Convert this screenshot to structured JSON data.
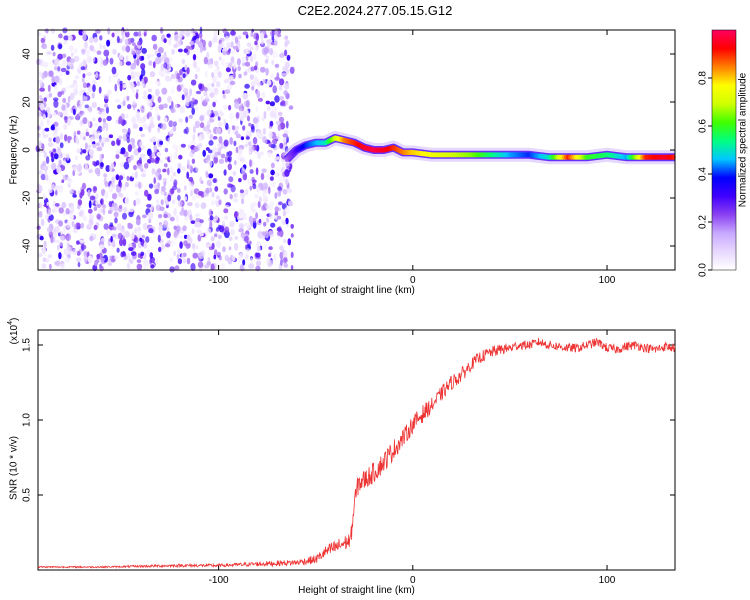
{
  "figure_title": "C2E2.2024.277.05.15.G12",
  "chart_data": [
    {
      "type": "heatmap",
      "title": "C2E2.2024.277.05.15.G12",
      "xlabel": "Height of straight line (km)",
      "ylabel": "Frequency (Hz)",
      "xlim": [
        -193,
        135
      ],
      "ylim": [
        -50,
        50
      ],
      "x_ticks": [
        -100,
        0,
        100
      ],
      "x_tick_labels": [
        "-100",
        "0",
        "100"
      ],
      "y_ticks": [
        -40,
        -20,
        0,
        20,
        40
      ],
      "y_tick_labels": [
        "-40",
        "-20",
        "0",
        "20",
        "40"
      ],
      "colorbar": {
        "label": "Normalized spectral amplitude",
        "range": [
          0,
          1
        ],
        "ticks": [
          0.0,
          0.2,
          0.4,
          0.6,
          0.8
        ],
        "tick_labels": [
          "0.0",
          "0.2",
          "0.4",
          "0.6",
          "0.8"
        ],
        "colors": [
          "#ffffff",
          "#e8d8ff",
          "#c8a8ff",
          "#8a40f0",
          "#4000ff",
          "#0000ff",
          "#00c8ff",
          "#00ff80",
          "#40ff00",
          "#d0ff00",
          "#ffff00",
          "#ff8000",
          "#ff0000",
          "#ff0060"
        ]
      },
      "noise_region_km": [
        -193,
        -62
      ],
      "noise_level": "low (0.0 - 0.1)",
      "ridge": {
        "description": "narrow band of high spectral amplitude following the signal frequency",
        "x": [
          -65,
          -60,
          -55,
          -50,
          -45,
          -40,
          -35,
          -30,
          -25,
          -20,
          -15,
          -10,
          -5,
          0,
          10,
          20,
          30,
          40,
          50,
          60,
          70,
          80,
          90,
          100,
          110,
          120,
          130,
          135
        ],
        "y": [
          -4,
          0,
          2,
          3,
          3,
          5,
          4,
          3,
          1,
          0,
          0,
          1,
          -1,
          -1,
          -2,
          -2,
          -2,
          -2,
          -2,
          -2,
          -3,
          -3,
          -3,
          -2,
          -3,
          -3,
          -3,
          -3
        ],
        "amplitude": [
          0.2,
          0.3,
          0.4,
          0.45,
          0.5,
          0.7,
          0.85,
          0.9,
          0.95,
          0.98,
          0.95,
          0.9,
          0.85,
          0.8,
          0.75,
          0.7,
          0.65,
          0.55,
          0.45,
          0.4,
          0.5,
          0.9,
          0.6,
          0.55,
          0.45,
          0.9,
          0.95,
          0.9
        ]
      }
    },
    {
      "type": "line",
      "xlabel": "Height of straight line (km)",
      "ylabel": "SNR (10 * v/v)",
      "y_multiplier_label": "(x10",
      "y_multiplier_exp": "4",
      "y_multiplier_close": ")",
      "xlim": [
        -193,
        135
      ],
      "ylim": [
        0,
        1.6
      ],
      "x_ticks": [
        -100,
        0,
        100
      ],
      "x_tick_labels": [
        "-100",
        "0",
        "100"
      ],
      "y_ticks": [
        0.5,
        1.0,
        1.5
      ],
      "y_tick_labels": [
        "0.5",
        "1.0",
        "1.5"
      ],
      "series": [
        {
          "color": "#ee3333",
          "x": [
            -193,
            -160,
            -120,
            -100,
            -80,
            -60,
            -50,
            -45,
            -40,
            -35,
            -32,
            -30,
            -28,
            -25,
            -20,
            -15,
            -10,
            -5,
            0,
            5,
            10,
            15,
            20,
            25,
            30,
            35,
            40,
            45,
            50,
            55,
            60,
            65,
            70,
            75,
            80,
            85,
            90,
            95,
            100,
            105,
            110,
            115,
            120,
            125,
            130,
            135
          ],
          "y": [
            0.02,
            0.02,
            0.03,
            0.03,
            0.04,
            0.05,
            0.07,
            0.12,
            0.15,
            0.18,
            0.2,
            0.45,
            0.58,
            0.6,
            0.65,
            0.72,
            0.8,
            0.88,
            0.97,
            1.04,
            1.1,
            1.18,
            1.25,
            1.3,
            1.37,
            1.42,
            1.45,
            1.47,
            1.48,
            1.5,
            1.5,
            1.52,
            1.5,
            1.49,
            1.48,
            1.48,
            1.5,
            1.52,
            1.48,
            1.47,
            1.49,
            1.5,
            1.48,
            1.47,
            1.49,
            1.48
          ],
          "noise_amplitude": [
            0.005,
            0.005,
            0.01,
            0.01,
            0.015,
            0.02,
            0.03,
            0.04,
            0.05,
            0.05,
            0.06,
            0.07,
            0.07,
            0.07,
            0.07,
            0.07,
            0.07,
            0.06,
            0.06,
            0.06,
            0.05,
            0.05,
            0.05,
            0.05,
            0.04,
            0.04,
            0.04,
            0.035,
            0.035,
            0.03,
            0.03,
            0.03,
            0.03,
            0.03,
            0.03,
            0.03,
            0.03,
            0.03,
            0.03,
            0.03,
            0.03,
            0.03,
            0.03,
            0.03,
            0.03,
            0.03
          ]
        }
      ]
    }
  ]
}
